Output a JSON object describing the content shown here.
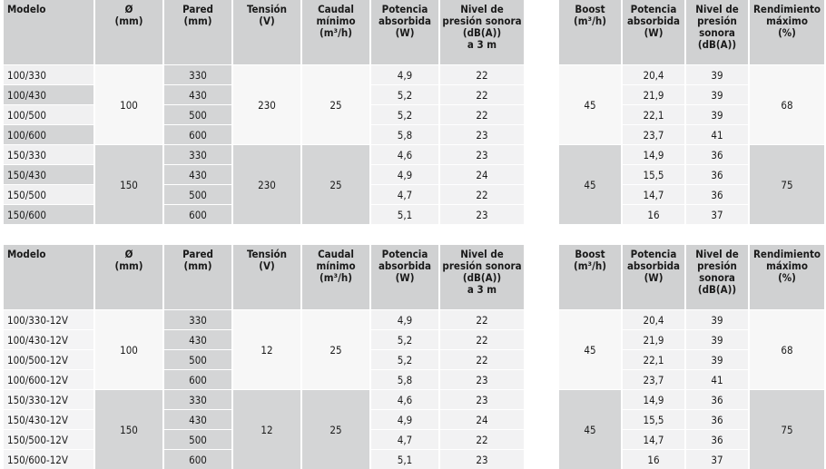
{
  "headers": {
    "left": [
      "Modelo",
      "Ø\n(mm)",
      "Pared\n(mm)",
      "Tensión\n(V)",
      "Caudal\nmínimo\n(m³/h)",
      "Potencia\nabsorbida\n(W)",
      "Nivel de\npresión sonora\n(dB(A))\na 3 m"
    ],
    "right": [
      "Boost\n(m³/h)",
      "Potencia\nabsorbida\n(W)",
      "Nivel de\npresión\nsonora\n(dB(A))",
      "Rendimiento\nmáximo\n(%)"
    ]
  },
  "tables": [
    {
      "groups": [
        {
          "diameter": "100",
          "voltage": "230",
          "flow": "25",
          "boost": "45",
          "performance": "68",
          "rows": [
            {
              "model": "100/330",
              "wall": "330",
              "power": "4,9",
              "noise": "22",
              "boost_power": "20,4",
              "boost_noise": "39"
            },
            {
              "model": "100/430",
              "wall": "430",
              "power": "5,2",
              "noise": "22",
              "boost_power": "21,9",
              "boost_noise": "39"
            },
            {
              "model": "100/500",
              "wall": "500",
              "power": "5,2",
              "noise": "22",
              "boost_power": "22,1",
              "boost_noise": "39"
            },
            {
              "model": "100/600",
              "wall": "600",
              "power": "5,8",
              "noise": "23",
              "boost_power": "23,7",
              "boost_noise": "41"
            }
          ]
        },
        {
          "diameter": "150",
          "voltage": "230",
          "flow": "25",
          "boost": "45",
          "performance": "75",
          "rows": [
            {
              "model": "150/330",
              "wall": "330",
              "power": "4,6",
              "noise": "23",
              "boost_power": "14,9",
              "boost_noise": "36"
            },
            {
              "model": "150/430",
              "wall": "430",
              "power": "4,9",
              "noise": "24",
              "boost_power": "15,5",
              "boost_noise": "36"
            },
            {
              "model": "150/500",
              "wall": "500",
              "power": "4,7",
              "noise": "22",
              "boost_power": "14,7",
              "boost_noise": "36"
            },
            {
              "model": "150/600",
              "wall": "600",
              "power": "5,1",
              "noise": "23",
              "boost_power": "16",
              "boost_noise": "37"
            }
          ]
        }
      ]
    },
    {
      "groups": [
        {
          "diameter": "100",
          "voltage": "12",
          "flow": "25",
          "boost": "45",
          "performance": "68",
          "rows": [
            {
              "model": "100/330-12V",
              "wall": "330",
              "power": "4,9",
              "noise": "22",
              "boost_power": "20,4",
              "boost_noise": "39"
            },
            {
              "model": "100/430-12V",
              "wall": "430",
              "power": "5,2",
              "noise": "22",
              "boost_power": "21,9",
              "boost_noise": "39"
            },
            {
              "model": "100/500-12V",
              "wall": "500",
              "power": "5,2",
              "noise": "22",
              "boost_power": "22,1",
              "boost_noise": "39"
            },
            {
              "model": "100/600-12V",
              "wall": "600",
              "power": "5,8",
              "noise": "23",
              "boost_power": "23,7",
              "boost_noise": "41"
            }
          ]
        },
        {
          "diameter": "150",
          "voltage": "12",
          "flow": "25",
          "boost": "45",
          "performance": "75",
          "rows": [
            {
              "model": "150/330-12V",
              "wall": "330",
              "power": "4,6",
              "noise": "23",
              "boost_power": "14,9",
              "boost_noise": "36"
            },
            {
              "model": "150/430-12V",
              "wall": "430",
              "power": "4,9",
              "noise": "24",
              "boost_power": "15,5",
              "boost_noise": "36"
            },
            {
              "model": "150/500-12V",
              "wall": "500",
              "power": "4,7",
              "noise": "22",
              "boost_power": "14,7",
              "boost_noise": "36"
            },
            {
              "model": "150/600-12V",
              "wall": "600",
              "power": "5,1",
              "noise": "23",
              "boost_power": "16",
              "boost_noise": "37"
            }
          ]
        }
      ]
    }
  ]
}
